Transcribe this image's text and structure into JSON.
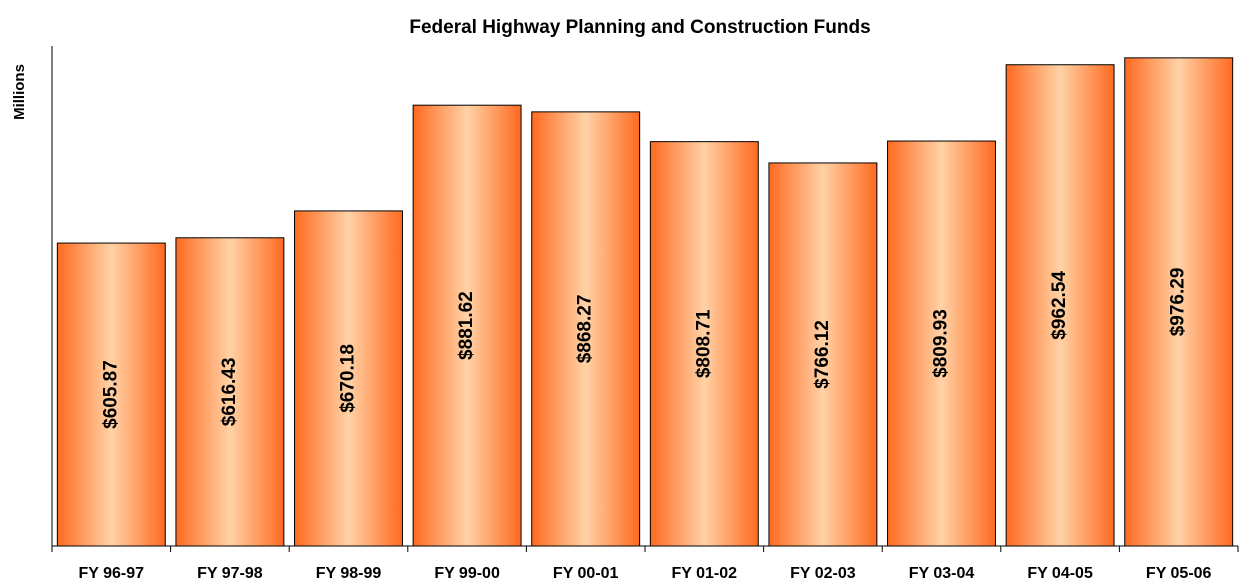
{
  "chart_data": {
    "type": "bar",
    "title": "Federal Highway Planning and Construction Funds",
    "y_label": "Millions",
    "categories": [
      "FY 96-97",
      "FY 97-98",
      "FY 98-99",
      "FY 99-00",
      "FY 00-01",
      "FY 01-02",
      "FY 02-03",
      "FY 03-04",
      "FY 04-05",
      "FY 05-06"
    ],
    "values": [
      605.87,
      616.43,
      670.18,
      881.62,
      868.27,
      808.71,
      766.12,
      809.93,
      962.54,
      976.29
    ],
    "value_labels": [
      "$605.87",
      "$616.43",
      "$670.18",
      "$881.62",
      "$868.27",
      "$808.71",
      "$766.12",
      "$809.93",
      "$962.54",
      "$976.29"
    ],
    "color": "#ff6a20",
    "ylim": [
      0,
      1000
    ]
  }
}
